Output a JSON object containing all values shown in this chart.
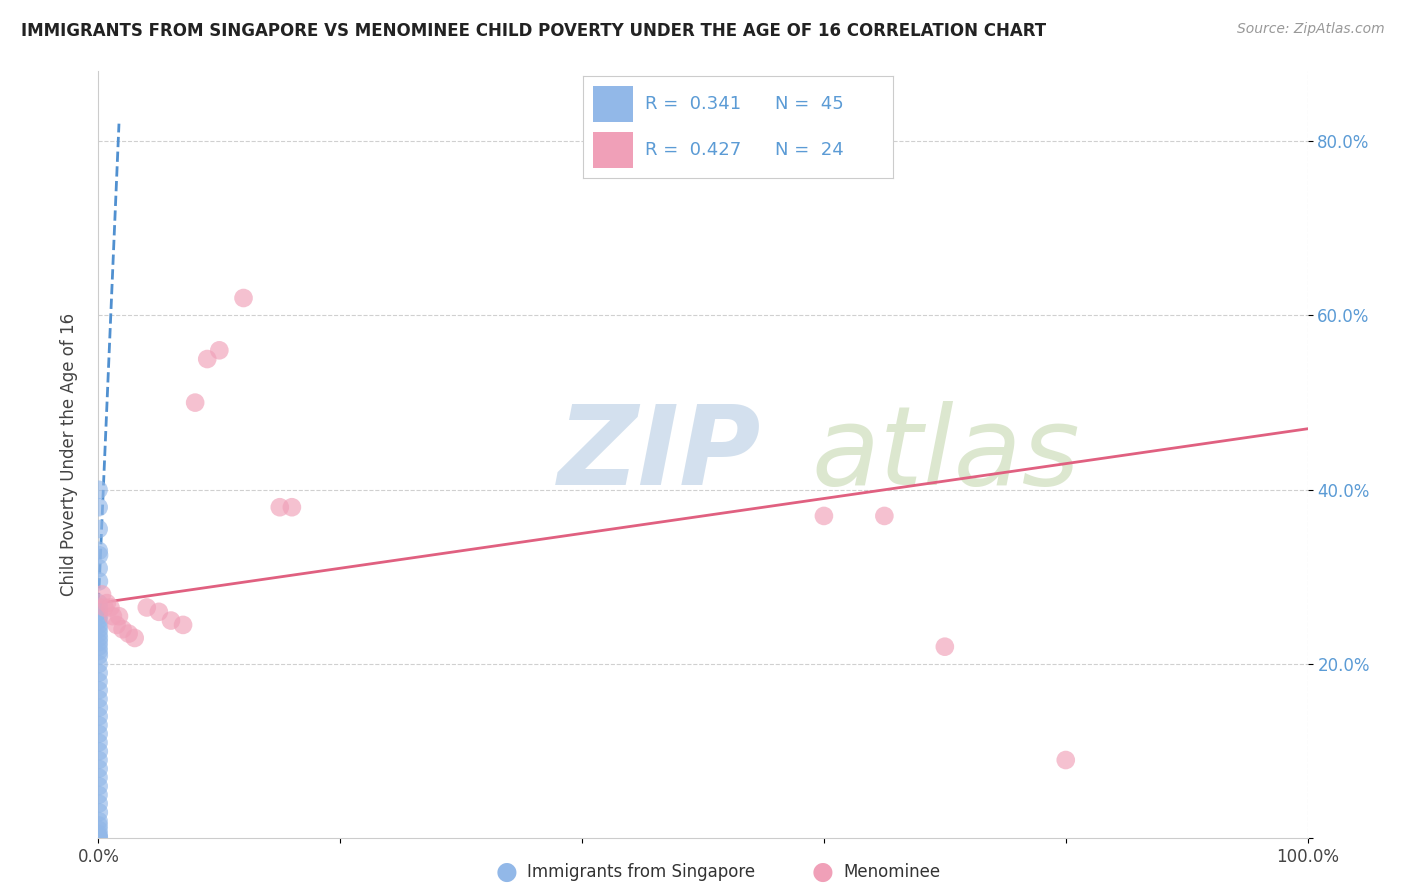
{
  "title": "IMMIGRANTS FROM SINGAPORE VS MENOMINEE CHILD POVERTY UNDER THE AGE OF 16 CORRELATION CHART",
  "source": "Source: ZipAtlas.com",
  "ylabel": "Child Poverty Under the Age of 16",
  "xlim": [
    0,
    1.0
  ],
  "ylim": [
    0,
    0.88
  ],
  "x_ticks": [
    0.0,
    0.2,
    0.4,
    0.6,
    0.8,
    1.0
  ],
  "x_tick_labels": [
    "0.0%",
    "",
    "",
    "",
    "",
    "100.0%"
  ],
  "y_ticks": [
    0.0,
    0.2,
    0.4,
    0.6,
    0.8
  ],
  "y_tick_labels": [
    "",
    "20.0%",
    "40.0%",
    "60.0%",
    "80.0%"
  ],
  "legend_r1": "0.341",
  "legend_n1": "45",
  "legend_r2": "0.427",
  "legend_n2": "24",
  "blue_color": "#92b8e8",
  "pink_color": "#f0a0b8",
  "blue_line_color": "#5090d0",
  "pink_line_color": "#e06080",
  "watermark_zip": "ZIP",
  "watermark_atlas": "atlas",
  "watermark_color_zip": "#b8cce0",
  "watermark_color_atlas": "#c8d8a0",
  "blue_scatter_x": [
    0.0002,
    0.0003,
    0.0005,
    0.0002,
    0.0004,
    0.0001,
    0.0003,
    0.0002,
    0.0004,
    0.0001,
    0.0003,
    0.0002,
    0.0001,
    0.0003,
    0.0002,
    0.0001,
    0.0002,
    0.0003,
    0.0001,
    0.0002,
    0.0001,
    0.0002,
    0.0001,
    0.0003,
    0.0002,
    0.0001,
    0.0002,
    0.0001,
    0.0003,
    0.0001,
    0.0002,
    0.0001,
    0.0002,
    0.0001,
    0.0002,
    0.0003,
    0.0001,
    0.0002,
    0.0001,
    0.0002,
    0.0001,
    0.0003,
    0.0001,
    0.0002,
    0.0001
  ],
  "blue_scatter_y": [
    0.355,
    0.33,
    0.325,
    0.31,
    0.295,
    0.27,
    0.265,
    0.26,
    0.255,
    0.25,
    0.245,
    0.24,
    0.235,
    0.23,
    0.225,
    0.22,
    0.215,
    0.21,
    0.2,
    0.19,
    0.18,
    0.17,
    0.16,
    0.15,
    0.14,
    0.13,
    0.12,
    0.11,
    0.1,
    0.09,
    0.08,
    0.07,
    0.06,
    0.05,
    0.04,
    0.03,
    0.02,
    0.015,
    0.01,
    0.005,
    0.002,
    0.001,
    0.0,
    0.38,
    0.4
  ],
  "pink_scatter_x": [
    0.003,
    0.005,
    0.007,
    0.01,
    0.012,
    0.015,
    0.017,
    0.02,
    0.025,
    0.03,
    0.04,
    0.05,
    0.06,
    0.07,
    0.08,
    0.09,
    0.1,
    0.12,
    0.15,
    0.16,
    0.6,
    0.65,
    0.7,
    0.8
  ],
  "pink_scatter_y": [
    0.28,
    0.265,
    0.27,
    0.265,
    0.255,
    0.245,
    0.255,
    0.24,
    0.235,
    0.23,
    0.265,
    0.26,
    0.25,
    0.245,
    0.5,
    0.55,
    0.56,
    0.62,
    0.38,
    0.38,
    0.37,
    0.37,
    0.22,
    0.09
  ],
  "blue_trend_x0": 0.0,
  "blue_trend_y0": 0.27,
  "blue_trend_x1": 0.017,
  "blue_trend_y1": 0.82,
  "pink_trend_x0": 0.0,
  "pink_trend_y0": 0.27,
  "pink_trend_x1": 1.0,
  "pink_trend_y1": 0.47
}
